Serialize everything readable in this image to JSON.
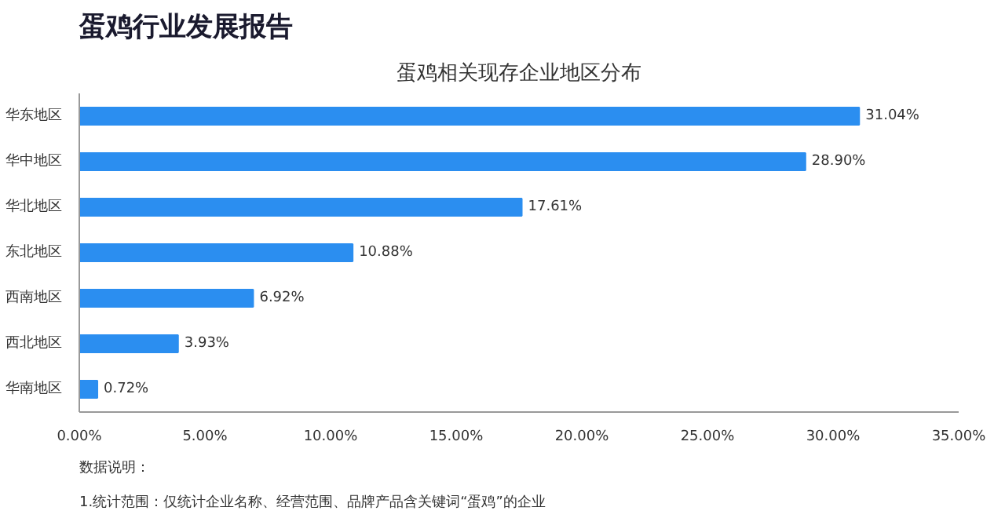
{
  "chart_data": {
    "type": "bar",
    "orientation": "horizontal",
    "title": "蛋鸡行业发展报告",
    "subtitle": "蛋鸡相关现存企业地区分布",
    "categories": [
      "华东地区",
      "华中地区",
      "华北地区",
      "东北地区",
      "西南地区",
      "西北地区",
      "华南地区"
    ],
    "values": [
      31.04,
      28.9,
      17.61,
      10.88,
      6.92,
      3.93,
      0.72
    ],
    "value_labels": [
      "31.04%",
      "28.90%",
      "17.61%",
      "10.88%",
      "6.92%",
      "3.93%",
      "0.72%"
    ],
    "color": "#2b8ef0",
    "xlim": [
      0,
      35
    ],
    "xticks": [
      {
        "value": 0,
        "label": "0.00%"
      },
      {
        "value": 5,
        "label": "5.00%"
      },
      {
        "value": 10,
        "label": "10.00%"
      },
      {
        "value": 15,
        "label": "15.00%"
      },
      {
        "value": 20,
        "label": "20.00%"
      },
      {
        "value": 25,
        "label": "25.00%"
      },
      {
        "value": 30,
        "label": "30.00%"
      },
      {
        "value": 35,
        "label": "35.00%"
      }
    ],
    "grid": false,
    "annotations": [
      "数据说明：",
      "1.统计范围：仅统计企业名称、经营范围、品牌产品含关键词“蛋鸡”的企业"
    ]
  }
}
